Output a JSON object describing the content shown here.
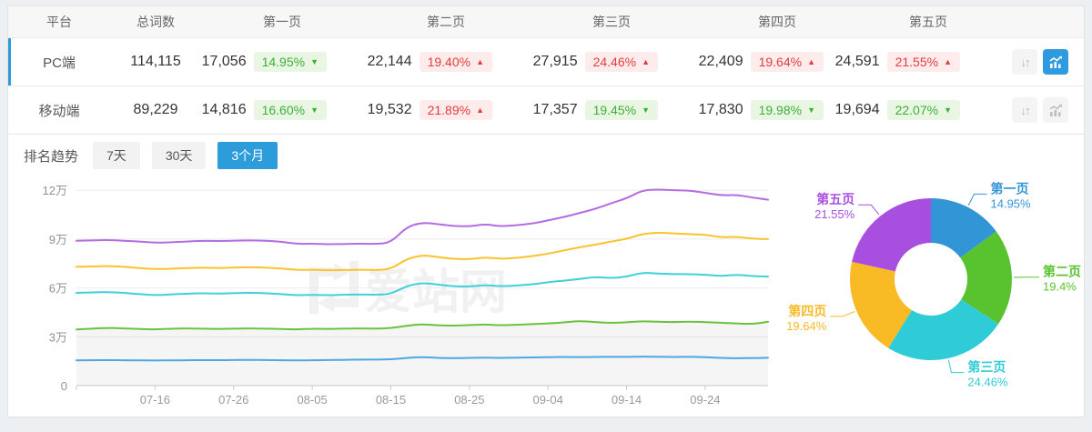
{
  "watermark": "爱站网",
  "icons": {
    "sort": "↓↑"
  },
  "colors": {
    "accent": "#2d9cdb",
    "badge_up_red": "#e23d3d",
    "badge_down_green": "#3cb035"
  },
  "table": {
    "columns": [
      "平台",
      "总词数",
      "第一页",
      "第二页",
      "第三页",
      "第四页",
      "第五页"
    ],
    "rows": [
      {
        "platform": "PC端",
        "total": "114,115",
        "selected": "true",
        "pages": [
          {
            "value": "17,056",
            "pct": "14.95%",
            "dir": "down"
          },
          {
            "value": "22,144",
            "pct": "19.40%",
            "dir": "up"
          },
          {
            "value": "27,915",
            "pct": "24.46%",
            "dir": "up"
          },
          {
            "value": "22,409",
            "pct": "19.64%",
            "dir": "up"
          },
          {
            "value": "24,591",
            "pct": "21.55%",
            "dir": "up"
          }
        ],
        "actions": {
          "chart_active": "true"
        }
      },
      {
        "platform": "移动端",
        "total": "89,229",
        "selected": "false",
        "pages": [
          {
            "value": "14,816",
            "pct": "16.60%",
            "dir": "down"
          },
          {
            "value": "19,532",
            "pct": "21.89%",
            "dir": "up"
          },
          {
            "value": "17,357",
            "pct": "19.45%",
            "dir": "down"
          },
          {
            "value": "17,830",
            "pct": "19.98%",
            "dir": "down"
          },
          {
            "value": "19,694",
            "pct": "22.07%",
            "dir": "down"
          }
        ],
        "actions": {
          "chart_active": "false"
        }
      }
    ]
  },
  "trend": {
    "title": "排名趋势",
    "tabs": [
      {
        "label": "7天",
        "active": "false"
      },
      {
        "label": "30天",
        "active": "false"
      },
      {
        "label": "3个月",
        "active": "true"
      }
    ]
  },
  "chart_data": [
    {
      "type": "line",
      "title": "排名趋势 3个月",
      "x_tick_labels": [
        "07-16",
        "07-26",
        "08-05",
        "08-15",
        "08-25",
        "09-04",
        "09-14",
        "09-24"
      ],
      "x_tick_days": [
        10,
        20,
        30,
        40,
        50,
        60,
        70,
        80
      ],
      "x_range_days": [
        0,
        88
      ],
      "point_step_days": 2,
      "y_tick_values": [
        0,
        3,
        6,
        9,
        12
      ],
      "y_tick_labels": [
        "0",
        "3万",
        "6万",
        "9万",
        "12万"
      ],
      "ylim_wan": [
        0,
        13
      ],
      "grid": true,
      "legend": "none",
      "series": [
        {
          "name": "purple",
          "color": "#b46ce3",
          "fill_below": "false",
          "values_wan": [
            8.9,
            8.92,
            8.95,
            8.9,
            8.85,
            8.78,
            8.8,
            8.85,
            8.9,
            8.88,
            8.9,
            8.92,
            8.9,
            8.85,
            8.7,
            8.72,
            8.68,
            8.7,
            8.72,
            8.7,
            8.78,
            9.75,
            10.02,
            9.92,
            9.8,
            9.78,
            9.92,
            9.78,
            9.85,
            9.95,
            10.15,
            10.35,
            10.6,
            10.85,
            11.2,
            11.5,
            12.0,
            12.05,
            12.0,
            11.98,
            11.85,
            11.68,
            11.72,
            11.55,
            11.42
          ]
        },
        {
          "name": "yellow",
          "color": "#f9c22e",
          "fill_below": "false",
          "values_wan": [
            7.3,
            7.32,
            7.35,
            7.3,
            7.22,
            7.15,
            7.18,
            7.22,
            7.25,
            7.22,
            7.25,
            7.28,
            7.25,
            7.2,
            7.1,
            7.12,
            7.08,
            7.1,
            7.12,
            7.1,
            7.15,
            7.78,
            8.02,
            7.9,
            7.78,
            7.76,
            7.88,
            7.78,
            7.85,
            7.95,
            8.1,
            8.3,
            8.5,
            8.65,
            8.85,
            9.0,
            9.32,
            9.4,
            9.35,
            9.3,
            9.28,
            9.1,
            9.15,
            9.02,
            9.0
          ]
        },
        {
          "name": "cyan",
          "color": "#3fd0da",
          "fill_below": "false",
          "values_wan": [
            5.7,
            5.72,
            5.75,
            5.7,
            5.62,
            5.55,
            5.6,
            5.65,
            5.68,
            5.65,
            5.68,
            5.7,
            5.68,
            5.62,
            5.55,
            5.58,
            5.55,
            5.58,
            5.6,
            5.58,
            5.62,
            6.12,
            6.32,
            6.2,
            6.1,
            6.08,
            6.18,
            6.1,
            6.15,
            6.22,
            6.35,
            6.45,
            6.55,
            6.68,
            6.6,
            6.68,
            6.95,
            6.88,
            6.85,
            6.85,
            6.82,
            6.72,
            6.82,
            6.72,
            6.7
          ]
        },
        {
          "name": "green",
          "color": "#68c43e",
          "fill_below": "true",
          "values_wan": [
            3.45,
            3.5,
            3.55,
            3.52,
            3.48,
            3.45,
            3.5,
            3.52,
            3.5,
            3.48,
            3.5,
            3.52,
            3.5,
            3.48,
            3.45,
            3.5,
            3.48,
            3.5,
            3.52,
            3.5,
            3.53,
            3.68,
            3.78,
            3.7,
            3.68,
            3.72,
            3.76,
            3.7,
            3.74,
            3.78,
            3.82,
            3.88,
            3.98,
            3.9,
            3.85,
            3.88,
            3.96,
            3.92,
            3.9,
            3.93,
            3.9,
            3.86,
            3.82,
            3.78,
            3.92
          ]
        },
        {
          "name": "blue",
          "color": "#4da7e0",
          "fill_below": "false",
          "values_wan": [
            1.55,
            1.56,
            1.57,
            1.56,
            1.55,
            1.54,
            1.55,
            1.56,
            1.57,
            1.56,
            1.57,
            1.58,
            1.57,
            1.56,
            1.55,
            1.56,
            1.57,
            1.58,
            1.6,
            1.6,
            1.61,
            1.7,
            1.76,
            1.7,
            1.68,
            1.7,
            1.72,
            1.7,
            1.72,
            1.73,
            1.75,
            1.76,
            1.75,
            1.76,
            1.77,
            1.76,
            1.78,
            1.77,
            1.76,
            1.77,
            1.75,
            1.7,
            1.68,
            1.69,
            1.71
          ]
        }
      ]
    },
    {
      "type": "donut",
      "legend_position": "outside-labels",
      "slices": [
        {
          "label": "第一页",
          "pct": 14.95,
          "display": "14.95%",
          "color": "#3295d6"
        },
        {
          "label": "第二页",
          "pct": 19.4,
          "display": "19.4%",
          "color": "#58c32e"
        },
        {
          "label": "第三页",
          "pct": 24.46,
          "display": "24.46%",
          "color": "#2fccd7"
        },
        {
          "label": "第四页",
          "pct": 19.64,
          "display": "19.64%",
          "color": "#f8ba25"
        },
        {
          "label": "第五页",
          "pct": 21.55,
          "display": "21.55%",
          "color": "#a84fe0"
        }
      ]
    }
  ]
}
